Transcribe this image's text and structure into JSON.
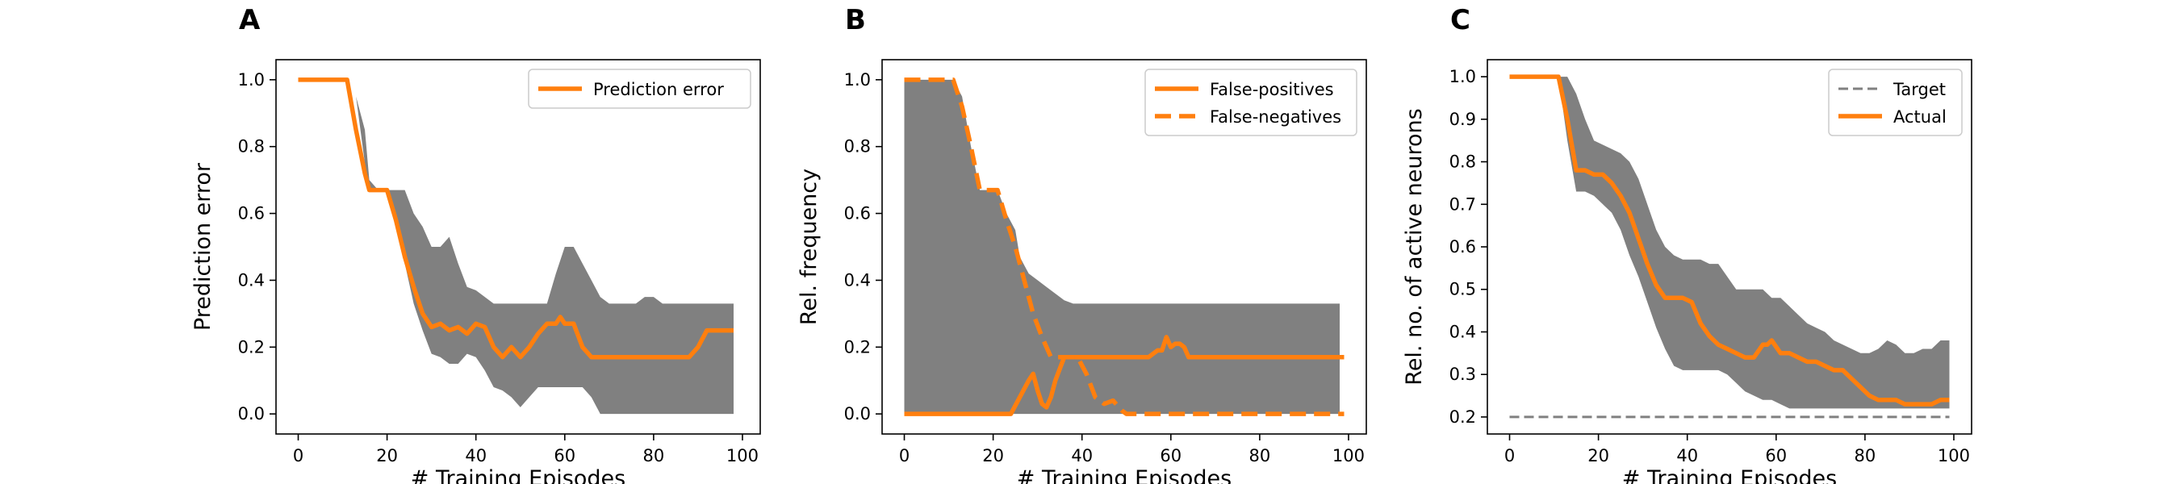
{
  "chart_data": [
    {
      "panel": "A",
      "type": "line",
      "xlabel": "# Training Episodes",
      "ylabel": "Prediction error",
      "xlim": [
        -5,
        104
      ],
      "ylim": [
        -0.06,
        1.06
      ],
      "xticks": [
        0,
        20,
        40,
        60,
        80,
        100
      ],
      "yticks": [
        0.0,
        0.2,
        0.4,
        0.6,
        0.8,
        1.0
      ],
      "ytick_labels": [
        "0.0",
        "0.2",
        "0.4",
        "0.6",
        "0.8",
        "1.0"
      ],
      "legend": "top-right",
      "band": {
        "x": [
          0,
          11,
          13,
          15,
          16,
          18,
          20,
          22,
          24,
          26,
          28,
          30,
          32,
          34,
          36,
          38,
          40,
          42,
          44,
          46,
          48,
          50,
          52,
          54,
          56,
          58,
          60,
          62,
          64,
          66,
          68,
          70,
          72,
          74,
          76,
          78,
          80,
          82,
          84,
          86,
          88,
          90,
          92,
          94,
          96,
          98
        ],
        "upper": [
          1,
          1,
          0.95,
          0.85,
          0.7,
          0.67,
          0.67,
          0.67,
          0.67,
          0.6,
          0.56,
          0.5,
          0.5,
          0.53,
          0.45,
          0.38,
          0.37,
          0.35,
          0.33,
          0.33,
          0.33,
          0.33,
          0.33,
          0.33,
          0.33,
          0.42,
          0.5,
          0.5,
          0.45,
          0.4,
          0.35,
          0.33,
          0.33,
          0.33,
          0.33,
          0.35,
          0.35,
          0.33,
          0.33,
          0.33,
          0.33,
          0.33,
          0.33,
          0.33,
          0.33,
          0.33
        ],
        "lower": [
          1,
          1,
          0.95,
          0.75,
          0.67,
          0.67,
          0.67,
          0.6,
          0.45,
          0.33,
          0.25,
          0.18,
          0.17,
          0.15,
          0.15,
          0.18,
          0.17,
          0.13,
          0.08,
          0.07,
          0.05,
          0.02,
          0.05,
          0.08,
          0.08,
          0.08,
          0.08,
          0.08,
          0.08,
          0.05,
          0.0,
          0.0,
          0.0,
          0.0,
          0.0,
          0.0,
          0.0,
          0.0,
          0.0,
          0.0,
          0.0,
          0.0,
          0.0,
          0.0,
          0.0,
          0.0
        ]
      },
      "series": [
        {
          "name": "Prediction error",
          "style": "solid",
          "x": [
            0,
            11,
            13,
            15,
            16,
            18,
            20,
            22,
            24,
            26,
            28,
            30,
            32,
            34,
            36,
            38,
            40,
            42,
            44,
            46,
            48,
            50,
            52,
            54,
            56,
            58,
            59,
            60,
            62,
            64,
            66,
            68,
            70,
            80,
            88,
            90,
            92,
            94,
            96,
            98
          ],
          "y": [
            1,
            1,
            0.85,
            0.72,
            0.67,
            0.67,
            0.67,
            0.58,
            0.47,
            0.38,
            0.3,
            0.26,
            0.27,
            0.25,
            0.26,
            0.24,
            0.27,
            0.26,
            0.2,
            0.17,
            0.2,
            0.17,
            0.2,
            0.24,
            0.27,
            0.27,
            0.29,
            0.27,
            0.27,
            0.2,
            0.17,
            0.17,
            0.17,
            0.17,
            0.17,
            0.2,
            0.25,
            0.25,
            0.25,
            0.25
          ]
        }
      ]
    },
    {
      "panel": "B",
      "type": "line",
      "xlabel": "# Training Episodes",
      "ylabel": "Rel. frequency",
      "xlim": [
        -5,
        104
      ],
      "ylim": [
        -0.06,
        1.06
      ],
      "xticks": [
        0,
        20,
        40,
        60,
        80,
        100
      ],
      "yticks": [
        0.0,
        0.2,
        0.4,
        0.6,
        0.8,
        1.0
      ],
      "ytick_labels": [
        "0.0",
        "0.2",
        "0.4",
        "0.6",
        "0.8",
        "1.0"
      ],
      "legend": "top-right",
      "band": {
        "x": [
          0,
          11,
          13,
          15,
          17,
          19,
          21,
          23,
          25,
          26,
          28,
          30,
          32,
          34,
          36,
          38,
          40,
          98
        ],
        "upper": [
          1,
          1,
          0.95,
          0.8,
          0.67,
          0.67,
          0.67,
          0.6,
          0.55,
          0.47,
          0.42,
          0.4,
          0.38,
          0.36,
          0.34,
          0.33,
          0.33,
          0.33
        ],
        "lower": [
          0,
          0,
          0,
          0,
          0,
          0,
          0,
          0,
          0,
          0,
          0,
          0,
          0,
          0,
          0,
          0,
          0,
          0
        ]
      },
      "series": [
        {
          "name": "False-positives",
          "style": "solid",
          "x": [
            0,
            24,
            26,
            28,
            29,
            30,
            31,
            32,
            33,
            34,
            36,
            38,
            40,
            50,
            55,
            57,
            58,
            59,
            60,
            61,
            62,
            63,
            64,
            70,
            80,
            90,
            99
          ],
          "y": [
            0,
            0,
            0.05,
            0.1,
            0.12,
            0.07,
            0.03,
            0.02,
            0.05,
            0.1,
            0.17,
            0.17,
            0.17,
            0.17,
            0.17,
            0.19,
            0.19,
            0.23,
            0.2,
            0.21,
            0.21,
            0.2,
            0.17,
            0.17,
            0.17,
            0.17,
            0.17
          ]
        },
        {
          "name": "False-negatives",
          "style": "dashed",
          "x": [
            0,
            11,
            13,
            15,
            17,
            19,
            21,
            23,
            25,
            27,
            29,
            31,
            33,
            35,
            37,
            39,
            41,
            43,
            45,
            47,
            49,
            50,
            60,
            70,
            80,
            90,
            99
          ],
          "y": [
            1,
            1,
            0.92,
            0.8,
            0.67,
            0.67,
            0.67,
            0.58,
            0.5,
            0.4,
            0.3,
            0.23,
            0.17,
            0.17,
            0.17,
            0.17,
            0.12,
            0.05,
            0.03,
            0.04,
            0.01,
            0,
            0,
            0,
            0,
            0,
            0
          ]
        }
      ]
    },
    {
      "panel": "C",
      "type": "line",
      "xlabel": "# Training Episodes",
      "ylabel": "Rel. no. of active neurons",
      "xlim": [
        -5,
        104
      ],
      "ylim": [
        0.16,
        1.04
      ],
      "xticks": [
        0,
        20,
        40,
        60,
        80,
        100
      ],
      "yticks": [
        0.2,
        0.3,
        0.4,
        0.5,
        0.6,
        0.7,
        0.8,
        0.9,
        1.0
      ],
      "ytick_labels": [
        "0.2",
        "0.3",
        "0.4",
        "0.5",
        "0.6",
        "0.7",
        "0.8",
        "0.9",
        "1.0"
      ],
      "legend": "top-right",
      "band": {
        "x": [
          0,
          11,
          13,
          15,
          17,
          19,
          21,
          23,
          25,
          27,
          29,
          31,
          33,
          35,
          37,
          39,
          41,
          43,
          45,
          47,
          49,
          51,
          53,
          55,
          57,
          59,
          61,
          63,
          65,
          67,
          69,
          71,
          73,
          75,
          77,
          79,
          81,
          83,
          85,
          87,
          89,
          91,
          93,
          95,
          97,
          99
        ],
        "upper": [
          1,
          1,
          1,
          0.96,
          0.9,
          0.85,
          0.84,
          0.83,
          0.82,
          0.8,
          0.76,
          0.7,
          0.64,
          0.6,
          0.58,
          0.57,
          0.57,
          0.57,
          0.56,
          0.56,
          0.53,
          0.5,
          0.5,
          0.5,
          0.5,
          0.48,
          0.48,
          0.46,
          0.44,
          0.42,
          0.41,
          0.4,
          0.38,
          0.37,
          0.36,
          0.35,
          0.35,
          0.36,
          0.38,
          0.37,
          0.35,
          0.35,
          0.36,
          0.36,
          0.38,
          0.38
        ],
        "lower": [
          1,
          1,
          0.85,
          0.73,
          0.73,
          0.72,
          0.7,
          0.68,
          0.64,
          0.58,
          0.53,
          0.47,
          0.41,
          0.36,
          0.32,
          0.31,
          0.31,
          0.31,
          0.31,
          0.31,
          0.3,
          0.28,
          0.26,
          0.25,
          0.24,
          0.24,
          0.23,
          0.22,
          0.22,
          0.22,
          0.22,
          0.22,
          0.22,
          0.22,
          0.22,
          0.22,
          0.22,
          0.22,
          0.22,
          0.22,
          0.22,
          0.22,
          0.22,
          0.22,
          0.22,
          0.22
        ]
      },
      "series": [
        {
          "name": "Target",
          "style": "dashed",
          "color": "#808080",
          "x": [
            0,
            99
          ],
          "y": [
            0.2,
            0.2
          ]
        },
        {
          "name": "Actual",
          "style": "solid",
          "x": [
            0,
            11,
            13,
            15,
            17,
            19,
            21,
            23,
            25,
            27,
            29,
            31,
            33,
            35,
            37,
            39,
            41,
            43,
            45,
            47,
            49,
            51,
            53,
            55,
            57,
            58,
            59,
            61,
            63,
            65,
            67,
            69,
            71,
            73,
            75,
            77,
            79,
            81,
            83,
            85,
            87,
            89,
            91,
            93,
            95,
            97,
            99
          ],
          "y": [
            1,
            1,
            0.9,
            0.78,
            0.78,
            0.77,
            0.77,
            0.75,
            0.72,
            0.68,
            0.62,
            0.56,
            0.51,
            0.48,
            0.48,
            0.48,
            0.47,
            0.42,
            0.39,
            0.37,
            0.36,
            0.35,
            0.34,
            0.34,
            0.37,
            0.37,
            0.38,
            0.35,
            0.35,
            0.34,
            0.33,
            0.33,
            0.32,
            0.31,
            0.31,
            0.29,
            0.27,
            0.25,
            0.24,
            0.24,
            0.24,
            0.23,
            0.23,
            0.23,
            0.23,
            0.24,
            0.24
          ]
        }
      ]
    }
  ],
  "colors": {
    "line": "#ff7f0e",
    "band": "#808080",
    "target": "#808080",
    "axes": "#000000",
    "legend_border": "#cccccc"
  }
}
